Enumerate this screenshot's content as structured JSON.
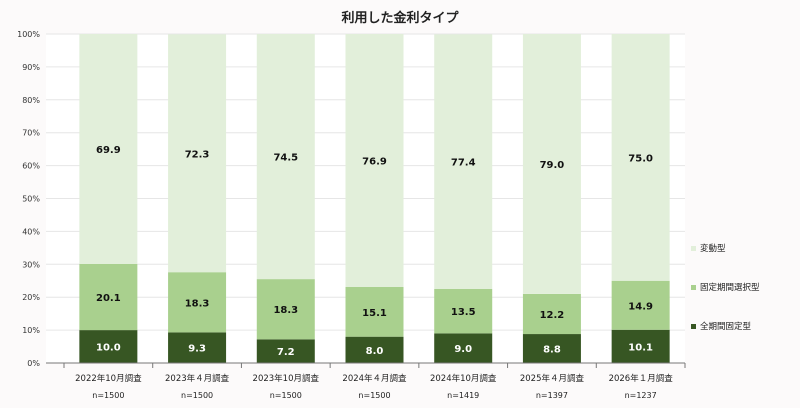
{
  "chart_data": {
    "type": "stacked-bar-100",
    "title": "利用した金利タイプ",
    "categories": [
      "2022年10月調査",
      "2023年４月調査",
      "2023年10月調査",
      "2024年４月調査",
      "2024年10月調査",
      "2025年４月調査",
      "2026年１月調査"
    ],
    "sample_sizes": [
      "n=1500",
      "n=1500",
      "n=1500",
      "n=1500",
      "n=1419",
      "n=1397",
      "n=1237"
    ],
    "series": [
      {
        "name": "全期間固定型",
        "color": "#375623",
        "values": [
          10.0,
          9.3,
          7.2,
          8.0,
          9.0,
          8.8,
          10.1
        ]
      },
      {
        "name": "固定期間選択型",
        "color": "#a9d08e",
        "values": [
          20.1,
          18.3,
          18.3,
          15.1,
          13.5,
          12.2,
          14.9
        ]
      },
      {
        "name": "変動型",
        "color": "#e2efda",
        "values": [
          69.9,
          72.3,
          74.5,
          76.9,
          77.4,
          79.0,
          75.0
        ]
      }
    ],
    "yticks": [
      "0%",
      "10%",
      "20%",
      "30%",
      "40%",
      "50%",
      "60%",
      "70%",
      "80%",
      "90%",
      "100%"
    ],
    "ylim": [
      0,
      100
    ],
    "grid": true,
    "legend": "right"
  }
}
